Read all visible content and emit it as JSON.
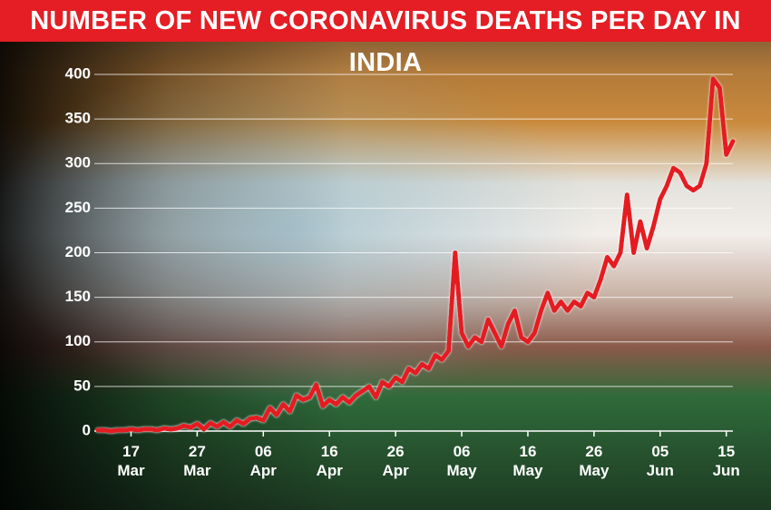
{
  "chart_data": {
    "type": "line",
    "title": "NUMBER OF NEW CORONAVIRUS DEATHS PER DAY IN INDIA",
    "categories": [
      null,
      null,
      null,
      null,
      null,
      "17 Mar",
      null,
      null,
      null,
      null,
      null,
      null,
      null,
      null,
      null,
      "27 Mar",
      null,
      null,
      null,
      null,
      null,
      null,
      null,
      null,
      null,
      "06 Apr",
      null,
      null,
      null,
      null,
      null,
      null,
      null,
      null,
      null,
      "16 Apr",
      null,
      null,
      null,
      null,
      null,
      null,
      null,
      null,
      null,
      "26 Apr",
      null,
      null,
      null,
      null,
      null,
      null,
      null,
      null,
      null,
      "06 May",
      null,
      null,
      null,
      null,
      null,
      null,
      null,
      null,
      null,
      "16 May",
      null,
      null,
      null,
      null,
      null,
      null,
      null,
      null,
      null,
      "26 May",
      null,
      null,
      null,
      null,
      null,
      null,
      null,
      null,
      null,
      "05 Jun",
      null,
      null,
      null,
      null,
      null,
      null,
      null,
      null,
      null,
      "15 Jun",
      null
    ],
    "values": [
      1,
      1,
      0,
      1,
      1,
      2,
      1,
      2,
      2,
      1,
      3,
      2,
      3,
      6,
      4,
      8,
      2,
      9,
      5,
      10,
      5,
      12,
      8,
      14,
      15,
      12,
      26,
      18,
      30,
      22,
      40,
      35,
      38,
      52,
      28,
      35,
      30,
      38,
      32,
      40,
      45,
      50,
      38,
      55,
      50,
      60,
      55,
      70,
      65,
      75,
      70,
      85,
      80,
      90,
      200,
      110,
      95,
      105,
      100,
      125,
      110,
      95,
      120,
      135,
      105,
      100,
      110,
      135,
      155,
      135,
      145,
      135,
      145,
      140,
      155,
      150,
      170,
      195,
      185,
      200,
      265,
      200,
      235,
      205,
      230,
      260,
      275,
      295,
      290,
      275,
      270,
      275,
      300,
      395,
      385,
      310,
      325
    ],
    "color": "#e41e24",
    "ylim": [
      0,
      400
    ],
    "yticks": [
      0,
      50,
      100,
      150,
      200,
      250,
      300,
      350,
      400
    ],
    "grid": true
  }
}
